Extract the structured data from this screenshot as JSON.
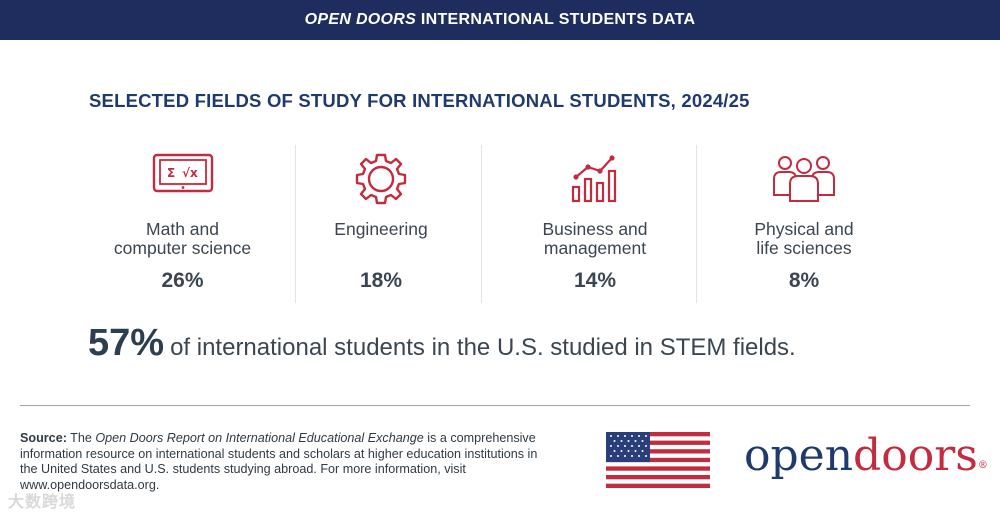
{
  "header": {
    "title_italic": "OPEN DOORS",
    "title_rest": " INTERNATIONAL STUDENTS DATA"
  },
  "title": "SELECTED FIELDS OF STUDY FOR INTERNATIONAL STUDENTS, 2024/25",
  "fields": [
    {
      "label_line1": "Math and",
      "label_line2": "computer science",
      "percent": "26%",
      "icon": "laptop-formula-icon"
    },
    {
      "label_line1": "Engineering",
      "label_line2": "",
      "percent": "18%",
      "icon": "gear-icon"
    },
    {
      "label_line1": "Business and",
      "label_line2": "management",
      "percent": "14%",
      "icon": "bar-chart-icon"
    },
    {
      "label_line1": "Physical and",
      "label_line2": "life sciences",
      "percent": "8%",
      "icon": "people-group-icon"
    }
  ],
  "headline": {
    "big": "57%",
    "rest": "of international students in the U.S. studied in STEM fields."
  },
  "source": {
    "label": "Source:",
    "pre": " The ",
    "report": "Open Doors Report on International Educational Exchange",
    "post": " is a comprehensive information resource on international students and scholars at higher education institutions in the United States and U.S. students studying abroad. For more information, visit www.opendoorsdata.org."
  },
  "logo": {
    "part1": "open",
    "part2": "doors",
    "reg": "®"
  },
  "watermark": "大数跨境",
  "colors": {
    "navy": "#1f2d5e",
    "red": "#c32b3f",
    "title_blue": "#1f3b6e"
  }
}
